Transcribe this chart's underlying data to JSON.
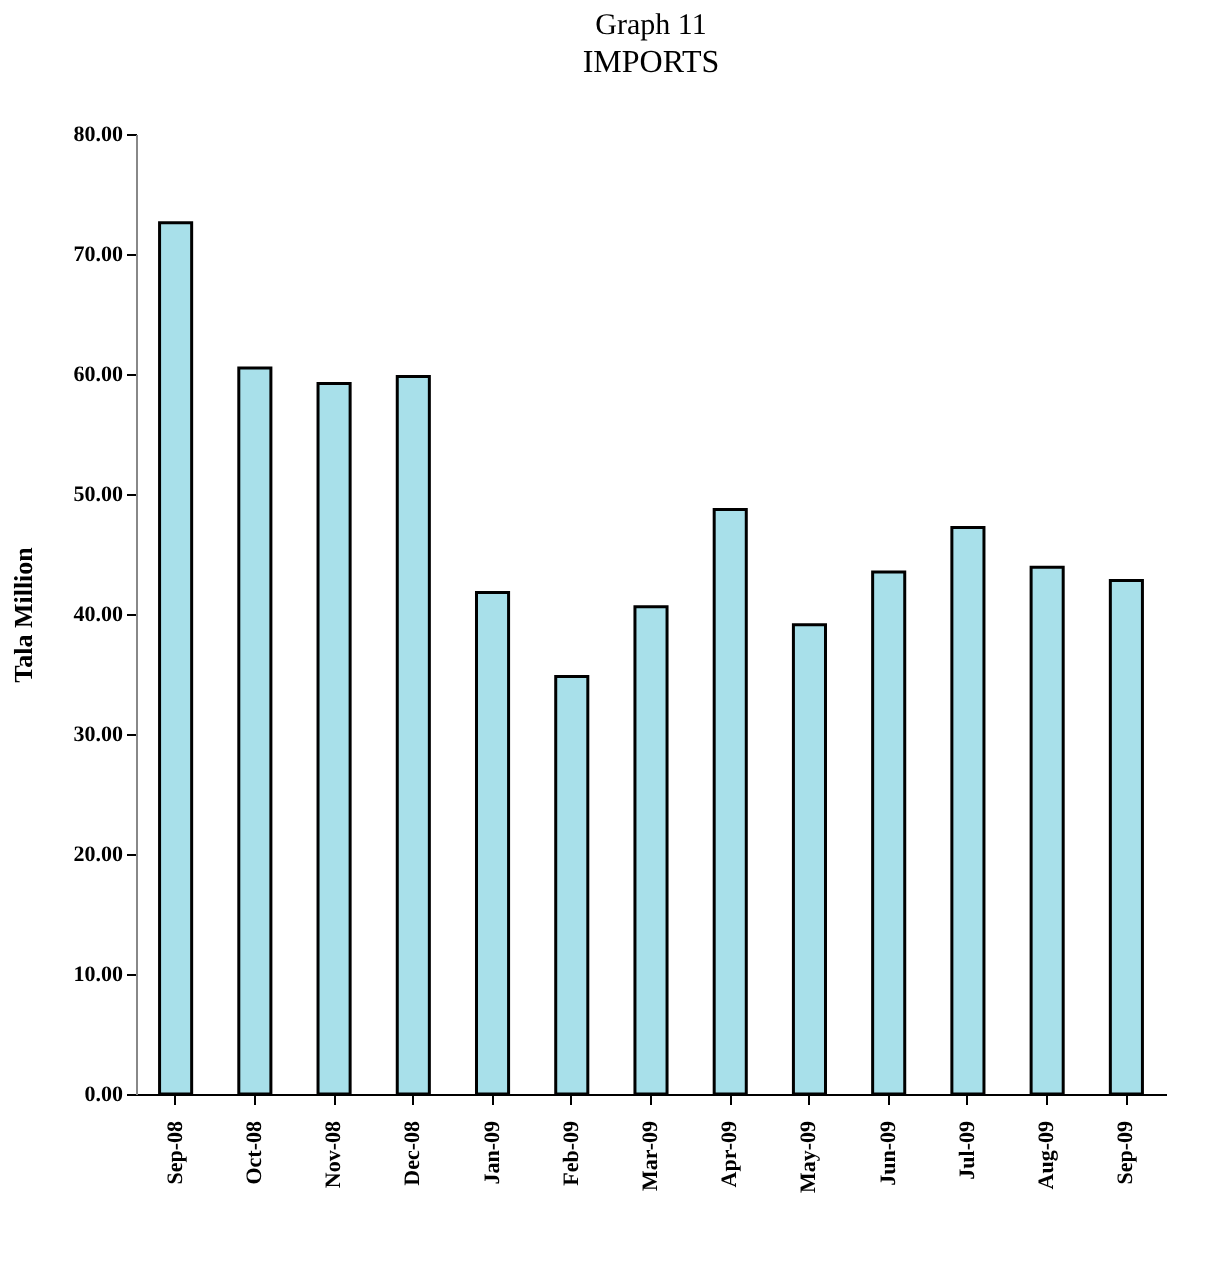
{
  "chart_data": {
    "type": "bar",
    "title": "Graph 11",
    "subtitle": "IMPORTS",
    "ylabel": "Tala Million",
    "categories": [
      "Sep-08",
      "Oct-08",
      "Nov-08",
      "Dec-08",
      "Jan-09",
      "Feb-09",
      "Mar-09",
      "Apr-09",
      "May-09",
      "Jun-09",
      "Jul-09",
      "Aug-09",
      "Sep-09"
    ],
    "values": [
      72.6,
      60.5,
      59.2,
      59.8,
      41.8,
      34.8,
      40.6,
      48.7,
      39.1,
      43.5,
      47.2,
      43.9,
      42.8
    ],
    "color": "#a8e0ea",
    "ylim": [
      0,
      80
    ],
    "yticks": [
      {
        "value": 0,
        "label": "0.00"
      },
      {
        "value": 10,
        "label": "10.00"
      },
      {
        "value": 20,
        "label": "20.00"
      },
      {
        "value": 30,
        "label": "30.00"
      },
      {
        "value": 40,
        "label": "40.00"
      },
      {
        "value": 50,
        "label": "50.00"
      },
      {
        "value": 60,
        "label": "60.00"
      },
      {
        "value": 70,
        "label": "70.00"
      },
      {
        "value": 80,
        "label": "80.00"
      }
    ],
    "grid": false
  }
}
